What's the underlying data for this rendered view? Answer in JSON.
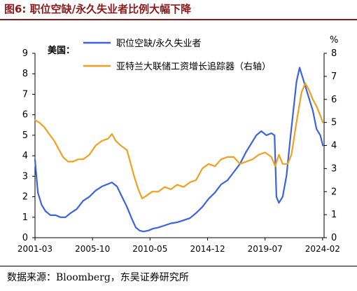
{
  "title": "图6:  职位空缺/永久失业者比例大幅下降",
  "source": "数据来源：Bloomberg，东吴证券研究所",
  "chart_data": {
    "type": "line",
    "region_label": "美国：",
    "y_right_unit": "%",
    "x_tick_labels": [
      "2001-03",
      "2005-10",
      "2010-05",
      "2014-12",
      "2019-07",
      "2024-02"
    ],
    "x_ticks": [
      2001.17,
      2005.75,
      2010.33,
      2014.92,
      2019.5,
      2024.08
    ],
    "xlim": [
      2001.17,
      2024.2
    ],
    "ylim_left": [
      0,
      9
    ],
    "ylim_right": [
      0,
      8
    ],
    "y_left_ticks": [
      0,
      1,
      2,
      3,
      4,
      5,
      6,
      7,
      8,
      9
    ],
    "y_right_ticks": [
      0,
      1,
      2,
      3,
      4,
      5,
      6,
      7,
      8
    ],
    "legend_position": "top-center",
    "series": [
      {
        "name": "职位空缺/永久失业者",
        "axis": "left",
        "color": "#3a63e0",
        "x": [
          2001.17,
          2001.4,
          2001.7,
          2002.0,
          2002.4,
          2002.8,
          2003.2,
          2003.6,
          2004.0,
          2004.5,
          2005.0,
          2005.5,
          2006.0,
          2006.5,
          2006.9,
          2007.3,
          2007.7,
          2008.1,
          2008.5,
          2008.9,
          2009.2,
          2009.5,
          2009.8,
          2010.2,
          2010.6,
          2011.0,
          2011.5,
          2012.0,
          2012.5,
          2013.0,
          2013.5,
          2014.0,
          2014.5,
          2015.0,
          2015.5,
          2016.0,
          2016.5,
          2017.0,
          2017.5,
          2018.0,
          2018.4,
          2018.8,
          2019.2,
          2019.6,
          2020.0,
          2020.25,
          2020.4,
          2020.6,
          2020.9,
          2021.2,
          2021.5,
          2021.8,
          2022.0,
          2022.25,
          2022.5,
          2022.8,
          2023.0,
          2023.3,
          2023.6,
          2023.9,
          2024.1
        ],
        "values": [
          3.8,
          2.2,
          1.6,
          1.3,
          1.1,
          1.1,
          1.0,
          1.0,
          1.2,
          1.4,
          1.8,
          2.0,
          2.3,
          2.5,
          2.6,
          2.7,
          2.5,
          2.0,
          1.5,
          0.9,
          0.5,
          0.35,
          0.3,
          0.35,
          0.45,
          0.5,
          0.6,
          0.7,
          0.75,
          0.85,
          0.95,
          1.2,
          1.5,
          1.9,
          2.2,
          2.6,
          2.8,
          3.2,
          3.6,
          4.2,
          4.6,
          5.0,
          5.2,
          5.0,
          5.1,
          5.0,
          2.0,
          1.7,
          2.0,
          3.0,
          4.8,
          6.5,
          7.6,
          8.3,
          7.8,
          7.2,
          6.8,
          6.2,
          5.3,
          5.0,
          4.5
        ]
      },
      {
        "name": "亚特兰大联储工资增长追踪器（右轴）",
        "axis": "right",
        "color": "#f0a020",
        "x": [
          2001.17,
          2001.5,
          2001.9,
          2002.3,
          2002.7,
          2003.0,
          2003.4,
          2003.8,
          2004.2,
          2004.6,
          2005.0,
          2005.5,
          2006.0,
          2006.5,
          2007.0,
          2007.3,
          2007.6,
          2008.0,
          2008.5,
          2008.8,
          2009.1,
          2009.4,
          2009.7,
          2010.0,
          2010.5,
          2011.0,
          2011.5,
          2012.0,
          2012.5,
          2013.0,
          2013.5,
          2014.0,
          2014.5,
          2015.0,
          2015.5,
          2016.0,
          2016.5,
          2017.0,
          2017.5,
          2018.0,
          2018.5,
          2019.0,
          2019.5,
          2020.0,
          2020.3,
          2020.6,
          2020.9,
          2021.3,
          2021.6,
          2022.0,
          2022.4,
          2022.7,
          2023.0,
          2023.3,
          2023.6,
          2023.9,
          2024.1
        ],
        "values": [
          5.1,
          5.0,
          4.8,
          4.5,
          4.2,
          3.9,
          3.5,
          3.3,
          3.3,
          3.4,
          3.4,
          3.6,
          4.0,
          4.2,
          4.3,
          4.5,
          4.2,
          4.0,
          3.8,
          3.2,
          2.6,
          2.1,
          1.7,
          1.8,
          2.0,
          2.0,
          2.2,
          2.1,
          2.3,
          2.2,
          2.4,
          2.5,
          3.0,
          3.2,
          3.1,
          3.4,
          3.5,
          3.5,
          3.2,
          3.3,
          3.4,
          3.6,
          3.7,
          3.5,
          3.1,
          3.6,
          3.2,
          3.2,
          3.6,
          5.0,
          6.3,
          6.7,
          6.4,
          6.0,
          5.7,
          5.3,
          5.0
        ]
      }
    ]
  }
}
